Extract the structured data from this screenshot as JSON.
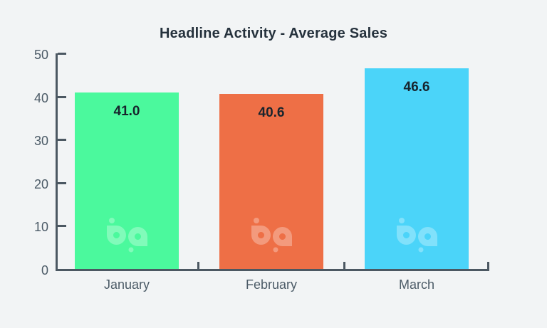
{
  "chart_data": {
    "type": "bar",
    "title": "Headline Activity - Average Sales",
    "categories": [
      "January",
      "February",
      "March"
    ],
    "values": [
      41.0,
      40.6,
      46.6
    ],
    "value_labels": [
      "41.0",
      "40.6",
      "46.6"
    ],
    "bar_colors": [
      "#4BF99D",
      "#EE6F46",
      "#4BD4F9"
    ],
    "xlabel": "",
    "ylabel": "",
    "ylim": [
      0,
      50
    ],
    "yticks": [
      0,
      10,
      20,
      30,
      40,
      50
    ],
    "grid": false,
    "legend": null,
    "watermark_icon": "bp-logo",
    "colors": {
      "background": "#F2F4F5",
      "axis": "#4C5862",
      "tick_label": "#4C5B67",
      "title_text": "#25313C",
      "value_label": "#17242D",
      "watermark": "rgba(255,255,255,0.3)"
    }
  }
}
